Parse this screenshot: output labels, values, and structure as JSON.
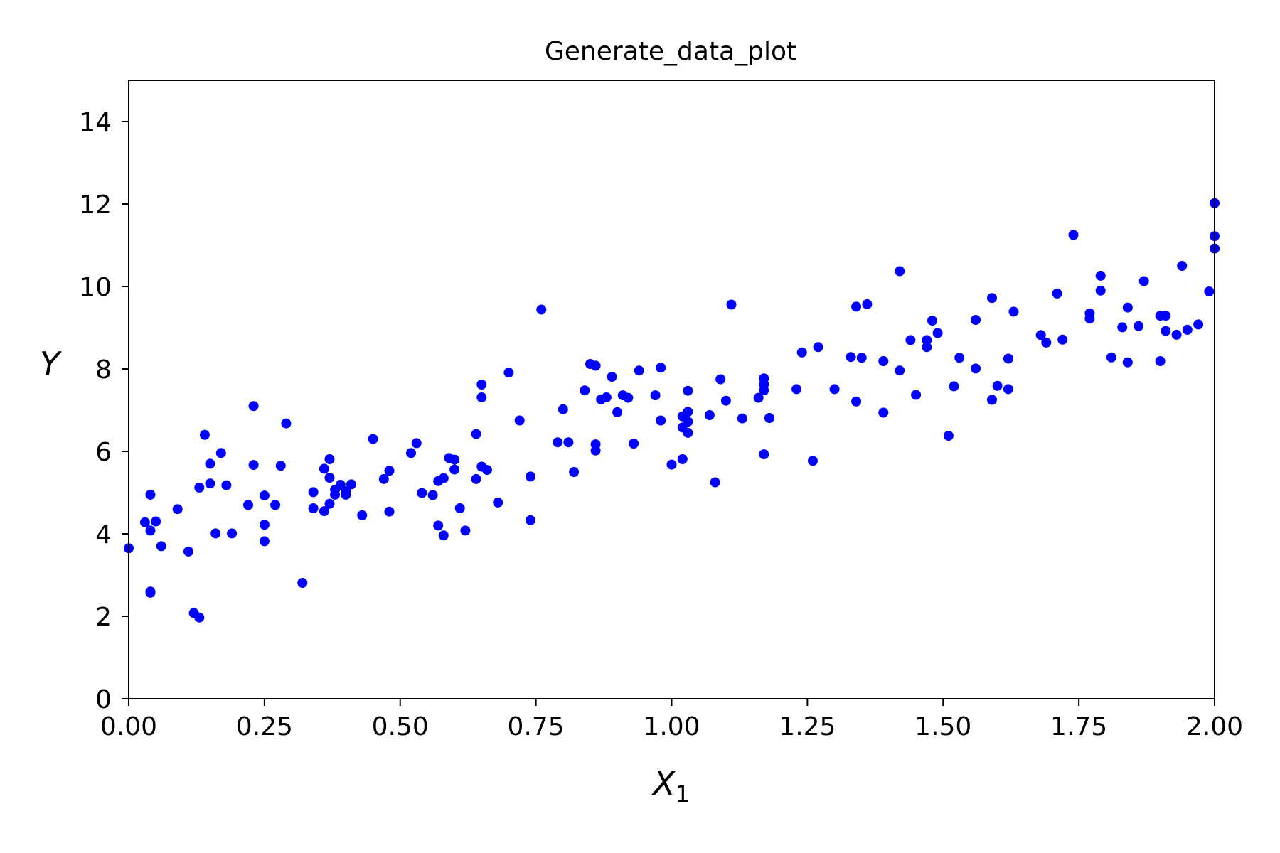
{
  "chart_data": {
    "type": "scatter",
    "title": "Generate_data_plot",
    "xlabel": "X",
    "xlabel_subscript": "1",
    "ylabel": "Y",
    "xlim": [
      0,
      2
    ],
    "ylim": [
      0,
      15
    ],
    "x_ticks": [
      0,
      0.25,
      0.5,
      0.75,
      1.0,
      1.25,
      1.5,
      1.75,
      2.0
    ],
    "x_tick_labels": [
      "0.00",
      "0.25",
      "0.50",
      "0.75",
      "1.00",
      "1.25",
      "1.50",
      "1.75",
      "2.00"
    ],
    "y_ticks": [
      0,
      2,
      4,
      6,
      8,
      10,
      12,
      14
    ],
    "y_tick_labels": [
      "0",
      "2",
      "4",
      "6",
      "8",
      "10",
      "12",
      "14"
    ],
    "grid": false,
    "marker_color": "#0000ff",
    "series": [
      {
        "points": [
          [
            0.0,
            3.65
          ],
          [
            0.03,
            4.28
          ],
          [
            0.04,
            4.95
          ],
          [
            0.04,
            2.6
          ],
          [
            0.04,
            2.57
          ],
          [
            0.04,
            4.08
          ],
          [
            0.05,
            4.3
          ],
          [
            0.06,
            3.7
          ],
          [
            0.09,
            4.6
          ],
          [
            0.11,
            3.57
          ],
          [
            0.12,
            2.08
          ],
          [
            0.13,
            1.97
          ],
          [
            0.13,
            5.12
          ],
          [
            0.14,
            6.4
          ],
          [
            0.15,
            5.7
          ],
          [
            0.15,
            5.22
          ],
          [
            0.16,
            4.01
          ],
          [
            0.17,
            5.96
          ],
          [
            0.18,
            5.18
          ],
          [
            0.19,
            4.01
          ],
          [
            0.22,
            4.7
          ],
          [
            0.23,
            7.1
          ],
          [
            0.23,
            5.67
          ],
          [
            0.25,
            4.22
          ],
          [
            0.25,
            3.82
          ],
          [
            0.25,
            4.93
          ],
          [
            0.27,
            4.7
          ],
          [
            0.28,
            5.65
          ],
          [
            0.29,
            6.68
          ],
          [
            0.32,
            2.81
          ],
          [
            0.34,
            5.01
          ],
          [
            0.34,
            4.62
          ],
          [
            0.36,
            4.55
          ],
          [
            0.36,
            5.58
          ],
          [
            0.37,
            5.36
          ],
          [
            0.37,
            5.81
          ],
          [
            0.37,
            4.73
          ],
          [
            0.38,
            5.07
          ],
          [
            0.38,
            4.95
          ],
          [
            0.39,
            5.19
          ],
          [
            0.4,
            5.03
          ],
          [
            0.4,
            4.95
          ],
          [
            0.41,
            5.2
          ],
          [
            0.43,
            4.45
          ],
          [
            0.45,
            6.3
          ],
          [
            0.47,
            5.33
          ],
          [
            0.48,
            5.53
          ],
          [
            0.48,
            4.54
          ],
          [
            0.52,
            5.96
          ],
          [
            0.53,
            6.2
          ],
          [
            0.54,
            4.99
          ],
          [
            0.56,
            4.94
          ],
          [
            0.57,
            5.28
          ],
          [
            0.57,
            4.2
          ],
          [
            0.58,
            3.96
          ],
          [
            0.58,
            5.35
          ],
          [
            0.59,
            5.84
          ],
          [
            0.6,
            5.56
          ],
          [
            0.6,
            5.8
          ],
          [
            0.61,
            4.62
          ],
          [
            0.62,
            4.08
          ],
          [
            0.64,
            5.33
          ],
          [
            0.64,
            6.42
          ],
          [
            0.65,
            5.63
          ],
          [
            0.65,
            7.31
          ],
          [
            0.65,
            7.62
          ],
          [
            0.66,
            5.55
          ],
          [
            0.68,
            4.76
          ],
          [
            0.7,
            7.91
          ],
          [
            0.72,
            6.75
          ],
          [
            0.74,
            5.39
          ],
          [
            0.74,
            4.33
          ],
          [
            0.76,
            9.44
          ],
          [
            0.79,
            6.22
          ],
          [
            0.8,
            7.02
          ],
          [
            0.81,
            6.22
          ],
          [
            0.82,
            5.5
          ],
          [
            0.84,
            7.48
          ],
          [
            0.85,
            8.12
          ],
          [
            0.86,
            8.08
          ],
          [
            0.86,
            6.17
          ],
          [
            0.86,
            6.02
          ],
          [
            0.87,
            7.26
          ],
          [
            0.88,
            7.31
          ],
          [
            0.89,
            7.81
          ],
          [
            0.9,
            6.95
          ],
          [
            0.91,
            7.36
          ],
          [
            0.92,
            7.3
          ],
          [
            0.93,
            6.19
          ],
          [
            0.94,
            7.96
          ],
          [
            0.97,
            7.36
          ],
          [
            0.98,
            6.75
          ],
          [
            0.98,
            8.03
          ],
          [
            1.0,
            5.68
          ],
          [
            1.02,
            6.58
          ],
          [
            1.02,
            6.85
          ],
          [
            1.02,
            5.81
          ],
          [
            1.03,
            7.47
          ],
          [
            1.03,
            6.72
          ],
          [
            1.03,
            6.45
          ],
          [
            1.03,
            6.96
          ],
          [
            1.07,
            6.88
          ],
          [
            1.08,
            5.25
          ],
          [
            1.09,
            7.75
          ],
          [
            1.1,
            7.23
          ],
          [
            1.11,
            9.56
          ],
          [
            1.13,
            6.8
          ],
          [
            1.16,
            7.3
          ],
          [
            1.17,
            7.77
          ],
          [
            1.17,
            7.48
          ],
          [
            1.17,
            5.93
          ],
          [
            1.17,
            7.63
          ],
          [
            1.18,
            6.81
          ],
          [
            1.23,
            7.51
          ],
          [
            1.24,
            8.4
          ],
          [
            1.26,
            5.77
          ],
          [
            1.27,
            8.53
          ],
          [
            1.3,
            7.51
          ],
          [
            1.33,
            8.29
          ],
          [
            1.34,
            7.21
          ],
          [
            1.34,
            9.51
          ],
          [
            1.35,
            8.27
          ],
          [
            1.36,
            9.57
          ],
          [
            1.39,
            6.94
          ],
          [
            1.39,
            8.19
          ],
          [
            1.42,
            7.96
          ],
          [
            1.42,
            10.37
          ],
          [
            1.44,
            8.7
          ],
          [
            1.45,
            7.37
          ],
          [
            1.47,
            8.53
          ],
          [
            1.47,
            8.7
          ],
          [
            1.48,
            9.17
          ],
          [
            1.49,
            8.87
          ],
          [
            1.51,
            6.38
          ],
          [
            1.52,
            7.58
          ],
          [
            1.53,
            8.27
          ],
          [
            1.56,
            8.01
          ],
          [
            1.56,
            9.19
          ],
          [
            1.59,
            7.25
          ],
          [
            1.59,
            9.72
          ],
          [
            1.6,
            7.59
          ],
          [
            1.62,
            8.25
          ],
          [
            1.62,
            7.51
          ],
          [
            1.63,
            9.39
          ],
          [
            1.68,
            8.82
          ],
          [
            1.69,
            8.64
          ],
          [
            1.71,
            9.83
          ],
          [
            1.72,
            8.71
          ],
          [
            1.74,
            11.25
          ],
          [
            1.77,
            9.35
          ],
          [
            1.77,
            9.22
          ],
          [
            1.79,
            10.26
          ],
          [
            1.79,
            9.9
          ],
          [
            1.81,
            8.28
          ],
          [
            1.83,
            9.01
          ],
          [
            1.84,
            8.16
          ],
          [
            1.84,
            9.49
          ],
          [
            1.86,
            9.04
          ],
          [
            1.87,
            10.13
          ],
          [
            1.9,
            9.29
          ],
          [
            1.9,
            8.19
          ],
          [
            1.91,
            9.29
          ],
          [
            1.91,
            8.92
          ],
          [
            1.93,
            8.83
          ],
          [
            1.94,
            10.5
          ],
          [
            1.95,
            8.95
          ],
          [
            1.97,
            9.08
          ],
          [
            1.99,
            9.88
          ],
          [
            2.0,
            12.02
          ],
          [
            2.0,
            11.22
          ],
          [
            2.0,
            10.92
          ]
        ]
      }
    ]
  }
}
